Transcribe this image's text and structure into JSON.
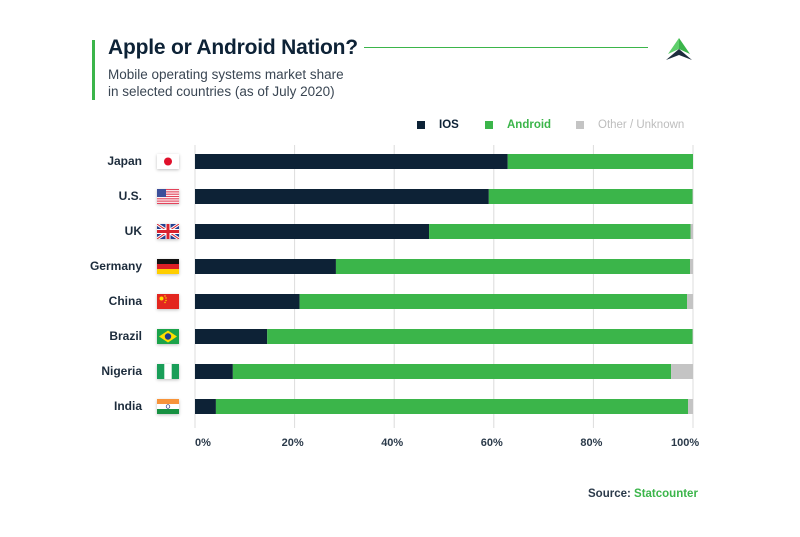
{
  "header": {
    "title": "Apple or Android Nation?",
    "subtitle_line1": "Mobile operating systems market share",
    "subtitle_line2": "in selected countries (as of July 2020)",
    "logo_icon": "triangle-logo-icon"
  },
  "colors": {
    "ios": "#0d2236",
    "android": "#3bb54a",
    "other": "#c4c4c4",
    "accent": "#3bb54a",
    "gridline": "#dcdcdc"
  },
  "legend": [
    {
      "label": "IOS",
      "color": "#0d2236",
      "text_color": "#0d2236"
    },
    {
      "label": "Android",
      "color": "#3bb54a",
      "text_color": "#3bb54a"
    },
    {
      "label": "Other / Unknown",
      "color": "#c4c4c4",
      "text_color": "#c4c4c4"
    }
  ],
  "source": {
    "label": "Source:",
    "name": "Statcounter"
  },
  "chart_data": {
    "type": "bar",
    "orientation": "horizontal",
    "stacked": true,
    "title": "Apple or Android Nation?",
    "subtitle": "Mobile operating systems market share in selected countries (as of July 2020)",
    "xlabel": "",
    "ylabel": "",
    "xlim": [
      0,
      100
    ],
    "x_ticks": [
      "0%",
      "20%",
      "40%",
      "60%",
      "80%",
      "100%"
    ],
    "grid": true,
    "legend_position": "top-right",
    "categories": [
      "Japan",
      "U.S.",
      "UK",
      "Germany",
      "China",
      "Brazil",
      "Nigeria",
      "India"
    ],
    "flags": [
      "japan-flag-icon",
      "us-flag-icon",
      "uk-flag-icon",
      "germany-flag-icon",
      "china-flag-icon",
      "brazil-flag-icon",
      "nigeria-flag-icon",
      "india-flag-icon"
    ],
    "series": [
      {
        "name": "IOS",
        "values": [
          62.8,
          59.0,
          47.0,
          28.3,
          21.0,
          14.5,
          7.6,
          4.2
        ]
      },
      {
        "name": "Android",
        "values": [
          37.2,
          40.9,
          52.5,
          71.1,
          77.8,
          85.4,
          88.0,
          94.8
        ]
      },
      {
        "name": "Other / Unknown",
        "values": [
          0.0,
          0.1,
          0.5,
          0.6,
          1.2,
          0.1,
          4.4,
          1.0
        ]
      }
    ]
  }
}
